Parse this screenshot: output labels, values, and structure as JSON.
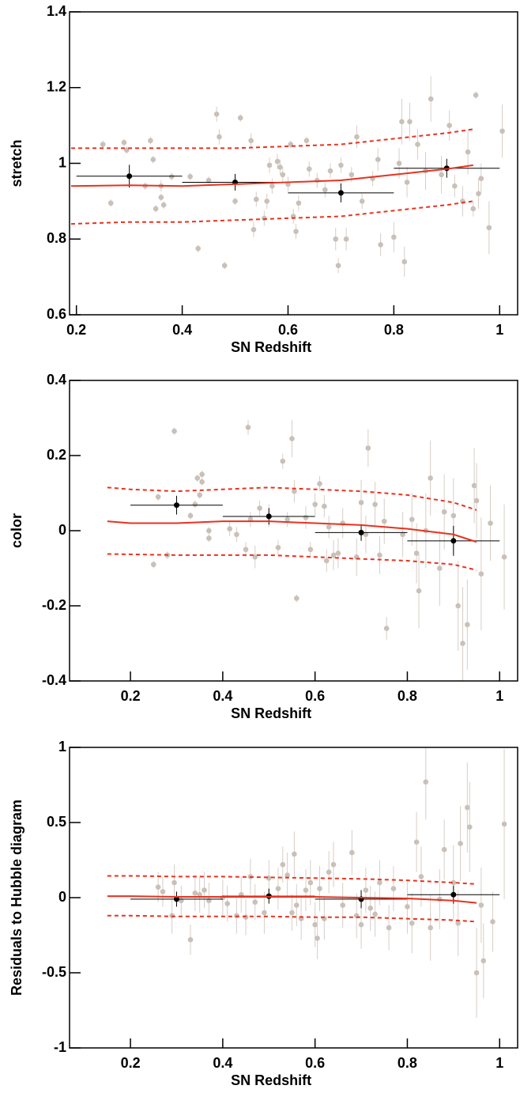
{
  "chart_data": [
    {
      "type": "scatter",
      "x_label": "SN Redshift",
      "y_label": "stretch",
      "xlim": [
        0.187,
        1.034
      ],
      "ylim": [
        0.6,
        1.4
      ],
      "xticks": [
        0.2,
        0.4,
        0.6,
        0.8,
        1
      ],
      "yticks": [
        0.6,
        0.8,
        1,
        1.2,
        1.4
      ],
      "series": [
        {
          "type": "errorbar",
          "color": "#c9c0b8",
          "x": [
            0.25,
            0.265,
            0.29,
            0.295,
            0.33,
            0.34,
            0.345,
            0.35,
            0.36,
            0.36,
            0.365,
            0.38,
            0.415,
            0.43,
            0.45,
            0.465,
            0.47,
            0.48,
            0.5,
            0.51,
            0.53,
            0.535,
            0.54,
            0.555,
            0.56,
            0.565,
            0.57,
            0.58,
            0.585,
            0.59,
            0.6,
            0.605,
            0.61,
            0.615,
            0.62,
            0.635,
            0.64,
            0.655,
            0.67,
            0.68,
            0.69,
            0.695,
            0.7,
            0.71,
            0.72,
            0.73,
            0.74,
            0.76,
            0.77,
            0.775,
            0.8,
            0.81,
            0.815,
            0.82,
            0.825,
            0.83,
            0.845,
            0.86,
            0.87,
            0.89,
            0.905,
            0.915,
            0.93,
            0.94,
            0.95,
            0.955,
            0.96,
            0.965,
            0.98,
            1.005
          ],
          "values": [
            1.05,
            0.895,
            1.055,
            1.035,
            0.94,
            1.06,
            1.01,
            0.88,
            0.94,
            0.91,
            0.89,
            0.965,
            0.965,
            0.775,
            0.955,
            1.13,
            1.07,
            0.73,
            0.9,
            1.12,
            1.06,
            0.825,
            0.905,
            0.855,
            0.9,
            0.995,
            0.94,
            1.005,
            0.99,
            0.97,
            0.945,
            1.05,
            0.86,
            0.82,
            0.895,
            1.06,
            0.985,
            0.955,
            0.93,
            0.98,
            0.8,
            0.73,
            0.995,
            0.8,
            0.97,
            1.07,
            0.9,
            0.96,
            1.01,
            0.785,
            0.805,
            1.0,
            1.11,
            0.74,
            0.95,
            1.11,
            1.05,
            0.98,
            1.17,
            0.97,
            1.1,
            0.94,
            0.9,
            1.03,
            0.88,
            1.18,
            0.92,
            0.96,
            0.83,
            1.085
          ],
          "errors": [
            0.01,
            0.01,
            0.01,
            0.01,
            0.01,
            0.01,
            0.01,
            0.01,
            0.015,
            0.01,
            0.01,
            0.01,
            0.01,
            0.01,
            0.01,
            0.02,
            0.02,
            0.01,
            0.01,
            0.01,
            0.02,
            0.02,
            0.02,
            0.02,
            0.02,
            0.02,
            0.02,
            0.02,
            0.02,
            0.02,
            0.02,
            0.01,
            0.02,
            0.02,
            0.02,
            0.01,
            0.02,
            0.02,
            0.02,
            0.02,
            0.03,
            0.02,
            0.02,
            0.03,
            0.02,
            0.03,
            0.02,
            0.02,
            0.03,
            0.03,
            0.04,
            0.04,
            0.06,
            0.04,
            0.04,
            0.05,
            0.04,
            0.05,
            0.06,
            0.05,
            0.04,
            0.03,
            0.04,
            0.06,
            0.02,
            0.01,
            0.04,
            0.04,
            0.07,
            0.07
          ]
        },
        {
          "type": "errorbar",
          "color": "#000000",
          "x": [
            0.3,
            0.5,
            0.7,
            0.9
          ],
          "values": [
            0.966,
            0.95,
            0.922,
            0.987
          ],
          "errors": [
            0.03,
            0.022,
            0.025,
            0.025
          ],
          "x_errors": [
            0.1,
            0.1,
            0.1,
            0.1
          ]
        },
        {
          "type": "line",
          "color": "#e8321e",
          "x": [
            0.19,
            0.3,
            0.4,
            0.5,
            0.6,
            0.7,
            0.8,
            0.9,
            0.95
          ],
          "values": [
            0.94,
            0.942,
            0.94,
            0.945,
            0.95,
            0.955,
            0.97,
            0.985,
            0.995
          ]
        },
        {
          "type": "line",
          "color": "#e8321e",
          "dashed": true,
          "x": [
            0.19,
            0.3,
            0.4,
            0.5,
            0.6,
            0.7,
            0.8,
            0.9,
            0.95
          ],
          "values": [
            1.04,
            1.04,
            1.04,
            1.04,
            1.045,
            1.05,
            1.065,
            1.08,
            1.09
          ]
        },
        {
          "type": "line",
          "color": "#e8321e",
          "dashed": true,
          "x": [
            0.19,
            0.3,
            0.4,
            0.5,
            0.6,
            0.7,
            0.8,
            0.9,
            0.95
          ],
          "values": [
            0.84,
            0.845,
            0.845,
            0.85,
            0.855,
            0.86,
            0.875,
            0.89,
            0.9
          ]
        }
      ]
    },
    {
      "type": "scatter",
      "x_label": "SN Redshift",
      "y_label": "color",
      "xlim": [
        0.068,
        1.039
      ],
      "ylim": [
        -0.4,
        0.4
      ],
      "xticks": [
        0.2,
        0.4,
        0.6,
        0.8,
        1
      ],
      "yticks": [
        -0.4,
        -0.2,
        0,
        0.2,
        0.4
      ],
      "series": [
        {
          "type": "errorbar",
          "color": "#c9c0b8",
          "x": [
            0.25,
            0.26,
            0.28,
            0.295,
            0.33,
            0.34,
            0.345,
            0.35,
            0.355,
            0.355,
            0.37,
            0.37,
            0.415,
            0.43,
            0.45,
            0.455,
            0.46,
            0.47,
            0.48,
            0.5,
            0.52,
            0.53,
            0.54,
            0.55,
            0.555,
            0.56,
            0.58,
            0.59,
            0.6,
            0.61,
            0.62,
            0.625,
            0.63,
            0.64,
            0.65,
            0.66,
            0.69,
            0.7,
            0.71,
            0.715,
            0.73,
            0.74,
            0.75,
            0.755,
            0.79,
            0.81,
            0.82,
            0.825,
            0.84,
            0.85,
            0.87,
            0.88,
            0.9,
            0.91,
            0.92,
            0.93,
            0.945,
            0.95,
            0.96,
            0.98,
            1.01
          ],
          "values": [
            -0.09,
            0.09,
            -0.065,
            0.265,
            0.04,
            0.07,
            0.14,
            0.095,
            0.15,
            0.13,
            0.0,
            -0.02,
            0.005,
            -0.01,
            -0.05,
            0.275,
            0.03,
            -0.07,
            0.06,
            0.04,
            -0.045,
            0.185,
            0.03,
            0.245,
            0.105,
            -0.18,
            0.035,
            -0.05,
            0.07,
            0.125,
            0.065,
            -0.08,
            0.01,
            -0.065,
            -0.06,
            0.02,
            -0.07,
            0.075,
            -0.01,
            0.22,
            0.07,
            -0.065,
            0.025,
            -0.26,
            -0.01,
            0.03,
            -0.06,
            -0.16,
            0.0,
            0.14,
            -0.1,
            0.05,
            0.04,
            -0.2,
            -0.3,
            -0.25,
            0.12,
            0.08,
            -0.115,
            0.02,
            -0.07
          ],
          "errors": [
            0.01,
            0.01,
            0.01,
            0.01,
            0.01,
            0.01,
            0.01,
            0.01,
            0.01,
            0.01,
            0.01,
            0.01,
            0.02,
            0.02,
            0.02,
            0.02,
            0.02,
            0.03,
            0.02,
            0.03,
            0.02,
            0.02,
            0.02,
            0.05,
            0.03,
            0.01,
            0.03,
            0.02,
            0.03,
            0.02,
            0.03,
            0.03,
            0.03,
            0.04,
            0.04,
            0.04,
            0.05,
            0.06,
            0.05,
            0.05,
            0.06,
            0.05,
            0.06,
            0.03,
            0.06,
            0.07,
            0.08,
            0.1,
            0.1,
            0.1,
            0.1,
            0.1,
            0.1,
            0.12,
            0.15,
            0.12,
            0.1,
            0.1,
            0.15,
            0.1,
            0.14
          ]
        },
        {
          "type": "errorbar",
          "color": "#000000",
          "x": [
            0.3,
            0.5,
            0.7,
            0.9
          ],
          "values": [
            0.068,
            0.038,
            -0.005,
            -0.027
          ],
          "errors": [
            0.025,
            0.022,
            0.022,
            0.04
          ],
          "x_errors": [
            0.1,
            0.1,
            0.1,
            0.1
          ]
        },
        {
          "type": "line",
          "color": "#e8321e",
          "x": [
            0.15,
            0.2,
            0.3,
            0.4,
            0.5,
            0.6,
            0.7,
            0.8,
            0.9,
            0.95
          ],
          "values": [
            0.025,
            0.02,
            0.02,
            0.025,
            0.025,
            0.02,
            0.015,
            0.005,
            -0.01,
            -0.03
          ]
        },
        {
          "type": "line",
          "color": "#e8321e",
          "dashed": true,
          "x": [
            0.15,
            0.2,
            0.3,
            0.4,
            0.5,
            0.6,
            0.7,
            0.8,
            0.9,
            0.95
          ],
          "values": [
            0.115,
            0.11,
            0.105,
            0.11,
            0.115,
            0.11,
            0.105,
            0.095,
            0.075,
            0.055
          ]
        },
        {
          "type": "line",
          "color": "#e8321e",
          "dashed": true,
          "x": [
            0.15,
            0.2,
            0.3,
            0.4,
            0.5,
            0.6,
            0.7,
            0.8,
            0.9,
            0.95
          ],
          "values": [
            -0.062,
            -0.063,
            -0.065,
            -0.065,
            -0.065,
            -0.07,
            -0.075,
            -0.08,
            -0.09,
            -0.105
          ]
        }
      ]
    },
    {
      "type": "scatter",
      "x_label": "SN Redshift",
      "y_label": "Residuals to Hubble diagram",
      "xlim": [
        0.068,
        1.039
      ],
      "ylim": [
        -1,
        1
      ],
      "xticks": [
        0.2,
        0.4,
        0.6,
        0.8,
        1
      ],
      "yticks": [
        -1,
        -0.5,
        0,
        0.5,
        1
      ],
      "series": [
        {
          "type": "errorbar",
          "color": "#c9c0b8",
          "x": [
            0.26,
            0.27,
            0.29,
            0.295,
            0.31,
            0.33,
            0.34,
            0.35,
            0.36,
            0.37,
            0.4,
            0.41,
            0.43,
            0.44,
            0.45,
            0.46,
            0.47,
            0.49,
            0.5,
            0.52,
            0.53,
            0.54,
            0.55,
            0.555,
            0.56,
            0.57,
            0.58,
            0.59,
            0.6,
            0.605,
            0.61,
            0.62,
            0.63,
            0.64,
            0.66,
            0.68,
            0.69,
            0.7,
            0.71,
            0.72,
            0.73,
            0.74,
            0.76,
            0.77,
            0.8,
            0.81,
            0.82,
            0.83,
            0.84,
            0.85,
            0.87,
            0.88,
            0.9,
            0.91,
            0.915,
            0.93,
            0.935,
            0.95,
            0.96,
            0.965,
            0.985,
            1.01
          ],
          "values": [
            0.07,
            0.04,
            -0.12,
            0.1,
            -0.02,
            -0.28,
            0.03,
            0.02,
            0.05,
            -0.02,
            0.0,
            -0.04,
            -0.12,
            0.02,
            -0.13,
            0.14,
            -0.03,
            -0.1,
            0.13,
            0.06,
            0.22,
            0.15,
            -0.1,
            0.29,
            -0.05,
            -0.14,
            0.05,
            0.1,
            -0.18,
            -0.27,
            0.06,
            -0.14,
            0.17,
            0.22,
            -0.05,
            0.3,
            -0.12,
            -0.18,
            0.05,
            -0.07,
            -0.11,
            0.1,
            -0.2,
            0.06,
            -0.06,
            -0.17,
            0.37,
            0.14,
            0.77,
            -0.2,
            -0.01,
            0.32,
            0.1,
            -0.17,
            0.36,
            0.6,
            0.47,
            -0.5,
            -0.05,
            -0.42,
            -0.16,
            0.49
          ],
          "errors": [
            0.1,
            0.1,
            0.12,
            0.12,
            0.1,
            0.1,
            0.12,
            0.12,
            0.12,
            0.12,
            0.12,
            0.12,
            0.12,
            0.12,
            0.12,
            0.12,
            0.12,
            0.14,
            0.12,
            0.14,
            0.12,
            0.15,
            0.12,
            0.15,
            0.14,
            0.14,
            0.14,
            0.15,
            0.15,
            0.14,
            0.15,
            0.14,
            0.14,
            0.15,
            0.15,
            0.15,
            0.15,
            0.16,
            0.15,
            0.15,
            0.15,
            0.15,
            0.15,
            0.15,
            0.18,
            0.2,
            0.2,
            0.2,
            0.25,
            0.22,
            0.2,
            0.2,
            0.25,
            0.22,
            0.25,
            0.3,
            0.3,
            0.3,
            0.25,
            0.25,
            0.2,
            0.5
          ]
        },
        {
          "type": "errorbar",
          "color": "#000000",
          "x": [
            0.3,
            0.5,
            0.7,
            0.9
          ],
          "values": [
            -0.01,
            0.01,
            -0.01,
            0.02
          ],
          "errors": [
            0.05,
            0.05,
            0.06,
            0.06
          ],
          "x_errors": [
            0.1,
            0.1,
            0.1,
            0.1
          ]
        },
        {
          "type": "line",
          "color": "#e8321e",
          "x": [
            0.15,
            0.2,
            0.3,
            0.4,
            0.5,
            0.6,
            0.7,
            0.8,
            0.9,
            0.95
          ],
          "values": [
            0.01,
            0.01,
            0.005,
            0.005,
            0.005,
            0.005,
            0.0,
            -0.005,
            -0.02,
            -0.035
          ]
        },
        {
          "type": "line",
          "color": "#e8321e",
          "dashed": true,
          "x": [
            0.15,
            0.2,
            0.3,
            0.4,
            0.5,
            0.6,
            0.7,
            0.8,
            0.9,
            0.95
          ],
          "values": [
            0.145,
            0.145,
            0.14,
            0.14,
            0.135,
            0.13,
            0.125,
            0.115,
            0.1,
            0.09
          ]
        },
        {
          "type": "line",
          "color": "#e8321e",
          "dashed": true,
          "x": [
            0.15,
            0.2,
            0.3,
            0.4,
            0.5,
            0.6,
            0.7,
            0.8,
            0.9,
            0.95
          ],
          "values": [
            -0.12,
            -0.12,
            -0.125,
            -0.125,
            -0.125,
            -0.13,
            -0.13,
            -0.14,
            -0.15,
            -0.16
          ]
        }
      ]
    }
  ]
}
